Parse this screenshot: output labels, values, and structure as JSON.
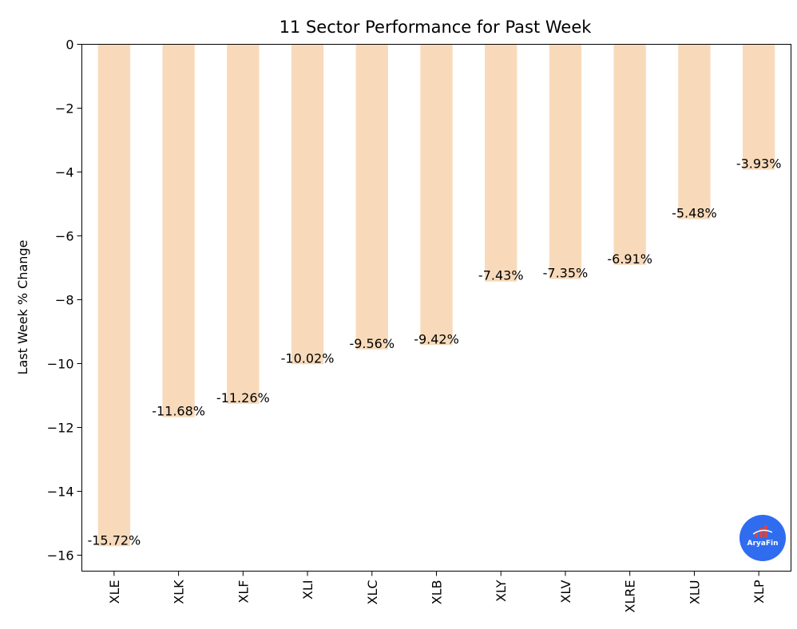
{
  "chart_data": {
    "type": "bar",
    "title": "11 Sector Performance for Past Week",
    "xlabel": "",
    "ylabel": "Last Week % Change",
    "categories": [
      "XLE",
      "XLK",
      "XLF",
      "XLI",
      "XLC",
      "XLB",
      "XLY",
      "XLV",
      "XLRE",
      "XLU",
      "XLP"
    ],
    "values": [
      -15.72,
      -11.68,
      -11.26,
      -10.02,
      -9.56,
      -9.42,
      -7.43,
      -7.35,
      -6.91,
      -5.48,
      -3.93
    ],
    "data_labels": [
      "-15.72%",
      "-11.68%",
      "-11.26%",
      "-10.02%",
      "-9.56%",
      "-9.42%",
      "-7.43%",
      "-7.35%",
      "-6.91%",
      "-5.48%",
      "-3.93%"
    ],
    "ylim": [
      -16.5,
      0
    ],
    "yticks": [
      0,
      -2,
      -4,
      -6,
      -8,
      -10,
      -12,
      -14,
      -16
    ],
    "ytick_labels": [
      "0",
      "−2",
      "−4",
      "−6",
      "−8",
      "−10",
      "−12",
      "−14",
      "−16"
    ],
    "bar_color": "#f8dabb",
    "grid": false,
    "legend": "none"
  },
  "watermark": {
    "text": "AryaFin",
    "color": "#2f6cf0"
  }
}
